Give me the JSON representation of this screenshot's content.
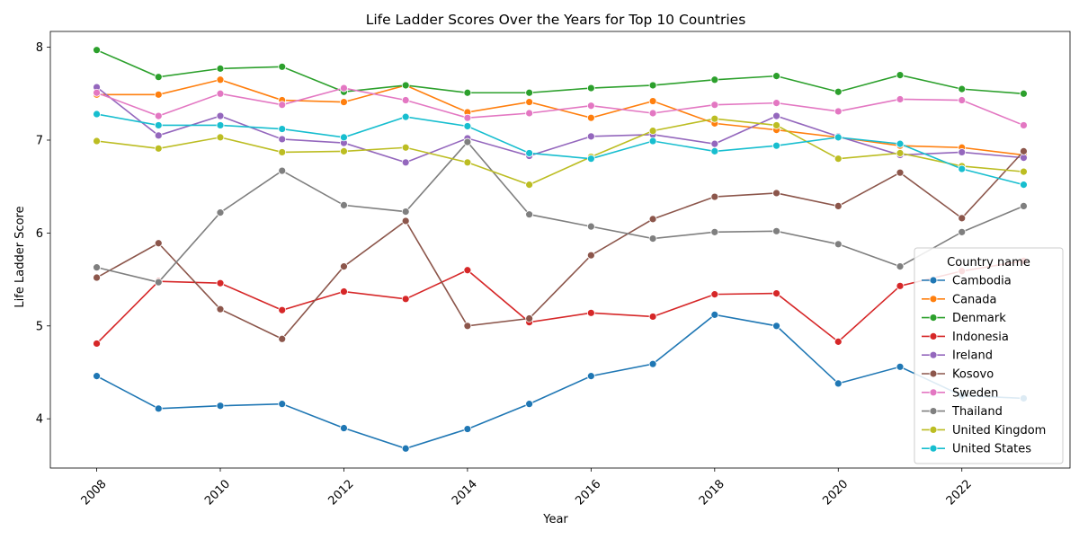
{
  "chart_data": {
    "type": "line",
    "title": "Life Ladder Scores Over the Years for Top 10 Countries",
    "xlabel": "Year",
    "ylabel": "Life Ladder Score",
    "x": [
      2008,
      2009,
      2010,
      2011,
      2012,
      2013,
      2014,
      2015,
      2016,
      2017,
      2018,
      2019,
      2020,
      2021,
      2022,
      2023
    ],
    "xticks": [
      2008,
      2010,
      2012,
      2014,
      2016,
      2018,
      2020,
      2022
    ],
    "yticks": [
      4,
      5,
      6,
      7,
      8
    ],
    "xlim": [
      2007.25,
      2023.75
    ],
    "ylim": [
      3.47,
      8.17
    ],
    "grid": false,
    "legend": {
      "title": "Country name",
      "placement": "lower-right"
    },
    "series": [
      {
        "name": "Cambodia",
        "color": "#1f77b4",
        "values": [
          4.46,
          4.11,
          4.14,
          4.16,
          3.9,
          3.68,
          3.89,
          4.16,
          4.46,
          4.59,
          5.12,
          5.0,
          4.38,
          4.56,
          4.25,
          4.22
        ]
      },
      {
        "name": "Canada",
        "color": "#ff7f0e",
        "values": [
          7.49,
          7.49,
          7.65,
          7.43,
          7.41,
          7.59,
          7.3,
          7.41,
          7.24,
          7.42,
          7.18,
          7.11,
          7.03,
          6.94,
          6.92,
          6.84
        ]
      },
      {
        "name": "Denmark",
        "color": "#2ca02c",
        "values": [
          7.97,
          7.68,
          7.77,
          7.79,
          7.52,
          7.59,
          7.51,
          7.51,
          7.56,
          7.59,
          7.65,
          7.69,
          7.52,
          7.7,
          7.55,
          7.5
        ]
      },
      {
        "name": "Indonesia",
        "color": "#d62728",
        "values": [
          4.81,
          5.48,
          5.46,
          5.17,
          5.37,
          5.29,
          5.6,
          5.04,
          5.14,
          5.1,
          5.34,
          5.35,
          4.83,
          5.43,
          5.59,
          5.7
        ]
      },
      {
        "name": "Ireland",
        "color": "#9467bd",
        "values": [
          7.57,
          7.05,
          7.26,
          7.01,
          6.97,
          6.76,
          7.02,
          6.83,
          7.04,
          7.06,
          6.96,
          7.26,
          7.04,
          6.84,
          6.87,
          6.81
        ]
      },
      {
        "name": "Kosovo",
        "color": "#8c564b",
        "values": [
          5.52,
          5.89,
          5.18,
          4.86,
          5.64,
          6.13,
          5.0,
          5.08,
          5.76,
          6.15,
          6.39,
          6.43,
          6.29,
          6.65,
          6.16,
          6.88
        ]
      },
      {
        "name": "Sweden",
        "color": "#e377c2",
        "values": [
          7.51,
          7.26,
          7.5,
          7.38,
          7.56,
          7.43,
          7.24,
          7.29,
          7.37,
          7.29,
          7.38,
          7.4,
          7.31,
          7.44,
          7.43,
          7.16
        ]
      },
      {
        "name": "Thailand",
        "color": "#7f7f7f",
        "values": [
          5.63,
          5.47,
          6.22,
          6.67,
          6.3,
          6.23,
          6.98,
          6.2,
          6.07,
          5.94,
          6.01,
          6.02,
          5.88,
          5.64,
          6.01,
          6.29
        ]
      },
      {
        "name": "United Kingdom",
        "color": "#bcbd22",
        "values": [
          6.99,
          6.91,
          7.03,
          6.87,
          6.88,
          6.92,
          6.76,
          6.52,
          6.82,
          7.1,
          7.23,
          7.16,
          6.8,
          6.86,
          6.72,
          6.66
        ]
      },
      {
        "name": "United States",
        "color": "#17becf",
        "values": [
          7.28,
          7.16,
          7.16,
          7.12,
          7.03,
          7.25,
          7.15,
          6.86,
          6.8,
          6.99,
          6.88,
          6.94,
          7.03,
          6.96,
          6.69,
          6.52
        ]
      }
    ]
  }
}
